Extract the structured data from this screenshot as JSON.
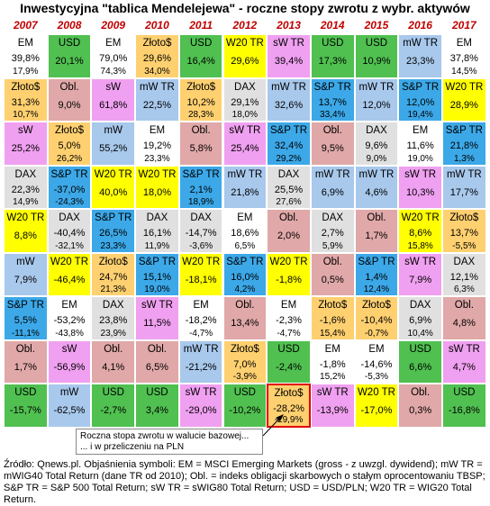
{
  "title": "Inwestycyjna \"tablica Mendelejewa\" - roczne stopy zwrotu z wybr. aktywów",
  "note": [
    "Roczna stopa zwrotu w walucie bazowej...",
    "... i w przeliczeniu na PLN"
  ],
  "source": "Źródło: Qnews.pl. Objaśnienia symboli: EM = MSCI Emerging Markets (gross - z uwzgl. dywidend); mW TR = mWIG40 Total Return (dane TR od 2010); Obl. = indeks obligacji skarbowych o stałym oprocentowaniu TBSP; S&P TR = S&P 500 Total Return; sW TR = sWIG80 Total Return; USD = USD/PLN; W20 TR = WIG20 Total Return.",
  "colors": {
    "EM": "#ffffff",
    "mW": "#a8c8ec",
    "Obl": "#e0a8a8",
    "sW": "#f0a0f0",
    "DAX": "#e0e0e0",
    "SP": "#3ca8e8",
    "W20": "#ffff00",
    "USD": "#50c050",
    "Zloto": "#ffd070"
  },
  "chart_data": {
    "type": "table",
    "years": [
      "2007",
      "2008",
      "2009",
      "2010",
      "2011",
      "2012",
      "2013",
      "2014",
      "2015",
      "2016",
      "2017"
    ],
    "columns": [
      [
        {
          "a": "EM",
          "label": "EM",
          "val": "39,8%",
          "sub": "17,9%"
        },
        {
          "a": "Zloto",
          "label": "Złoto$",
          "val": "31,3%",
          "sub": "10,7%"
        },
        {
          "a": "sW",
          "label": "sW",
          "val": "25,2%"
        },
        {
          "a": "DAX",
          "label": "DAX",
          "val": "22,3%",
          "sub": "14,9%"
        },
        {
          "a": "W20",
          "label": "W20 TR",
          "val": "8,8%"
        },
        {
          "a": "mW",
          "label": "mW",
          "val": "7,9%"
        },
        {
          "a": "SP",
          "label": "S&P TR",
          "val": "5,5%",
          "sub": "-11,1%"
        },
        {
          "a": "Obl",
          "label": "Obl.",
          "val": "1,7%"
        },
        {
          "a": "USD",
          "label": "USD",
          "val": "-15,7%"
        }
      ],
      [
        {
          "a": "USD",
          "label": "USD",
          "val": "20,1%"
        },
        {
          "a": "Obl",
          "label": "Obl.",
          "val": "9,0%"
        },
        {
          "a": "Zloto",
          "label": "Złoto$",
          "val": "5,0%",
          "sub": "26,2%"
        },
        {
          "a": "SP",
          "label": "S&P TR",
          "val": "-37,0%",
          "sub": "-24,3%"
        },
        {
          "a": "DAX",
          "label": "DAX",
          "val": "-40,4%",
          "sub": "-32,1%"
        },
        {
          "a": "W20",
          "label": "W20 TR",
          "val": "-46,4%"
        },
        {
          "a": "EM",
          "label": "EM",
          "val": "-53,2%",
          "sub": "-43,8%"
        },
        {
          "a": "sW",
          "label": "sW",
          "val": "-56,9%"
        },
        {
          "a": "mW",
          "label": "mW",
          "val": "-62,5%"
        }
      ],
      [
        {
          "a": "EM",
          "label": "EM",
          "val": "79,0%",
          "sub": "74,3%"
        },
        {
          "a": "sW",
          "label": "sW",
          "val": "61,8%"
        },
        {
          "a": "mW",
          "label": "mW",
          "val": "55,2%"
        },
        {
          "a": "W20",
          "label": "W20 TR",
          "val": "40,0%"
        },
        {
          "a": "SP",
          "label": "S&P TR",
          "val": "26,5%",
          "sub": "23,3%"
        },
        {
          "a": "Zloto",
          "label": "Złoto$",
          "val": "24,7%",
          "sub": "21,3%"
        },
        {
          "a": "DAX",
          "label": "DAX",
          "val": "23,8%",
          "sub": "23,9%"
        },
        {
          "a": "Obl",
          "label": "Obl.",
          "val": "4,1%"
        },
        {
          "a": "USD",
          "label": "USD",
          "val": "-2,7%"
        }
      ],
      [
        {
          "a": "Zloto",
          "label": "Złoto$",
          "val": "29,6%",
          "sub": "34,0%"
        },
        {
          "a": "mW",
          "label": "mW TR",
          "val": "22,5%"
        },
        {
          "a": "EM",
          "label": "EM",
          "val": "19,2%",
          "sub": "23,3%"
        },
        {
          "a": "W20",
          "label": "W20 TR",
          "val": "18,0%"
        },
        {
          "a": "DAX",
          "label": "DAX",
          "val": "16,1%",
          "sub": "11,9%"
        },
        {
          "a": "SP",
          "label": "S&P TR",
          "val": "15,1%",
          "sub": "19,0%"
        },
        {
          "a": "sW",
          "label": "sW TR",
          "val": "11,5%"
        },
        {
          "a": "Obl",
          "label": "Obl.",
          "val": "6,5%"
        },
        {
          "a": "USD",
          "label": "USD",
          "val": "3,4%"
        }
      ],
      [
        {
          "a": "USD",
          "label": "USD",
          "val": "16,4%"
        },
        {
          "a": "Zloto",
          "label": "Złoto$",
          "val": "10,2%",
          "sub": "28,3%"
        },
        {
          "a": "Obl",
          "label": "Obl.",
          "val": "5,8%"
        },
        {
          "a": "SP",
          "label": "S&P TR",
          "val": "2,1%",
          "sub": "18,9%"
        },
        {
          "a": "DAX",
          "label": "DAX",
          "val": "-14,7%",
          "sub": "-3,6%"
        },
        {
          "a": "W20",
          "label": "W20 TR",
          "val": "-18,1%"
        },
        {
          "a": "EM",
          "label": "EM",
          "val": "-18,2%",
          "sub": "-4,7%"
        },
        {
          "a": "mW",
          "label": "mW TR",
          "val": "-21,2%"
        },
        {
          "a": "sW",
          "label": "sW TR",
          "val": "-29,0%"
        }
      ],
      [
        {
          "a": "W20",
          "label": "W20 TR",
          "val": "29,6%"
        },
        {
          "a": "DAX",
          "label": "DAX",
          "val": "29,1%",
          "sub": "18,0%"
        },
        {
          "a": "sW",
          "label": "sW TR",
          "val": "25,4%"
        },
        {
          "a": "mW",
          "label": "mW TR",
          "val": "21,8%"
        },
        {
          "a": "EM",
          "label": "EM",
          "val": "18,6%",
          "sub": "6,5%"
        },
        {
          "a": "SP",
          "label": "S&P TR",
          "val": "16,0%",
          "sub": "4,2%"
        },
        {
          "a": "Obl",
          "label": "Obl.",
          "val": "13,4%"
        },
        {
          "a": "Zloto",
          "label": "Złoto$",
          "val": "7,0%",
          "sub": "-3,9%"
        },
        {
          "a": "USD",
          "label": "USD",
          "val": "-10,2%"
        }
      ],
      [
        {
          "a": "sW",
          "label": "sW TR",
          "val": "39,4%"
        },
        {
          "a": "mW",
          "label": "mW TR",
          "val": "32,6%"
        },
        {
          "a": "SP",
          "label": "S&P TR",
          "val": "32,4%",
          "sub": "29,2%"
        },
        {
          "a": "DAX",
          "label": "DAX",
          "val": "25,5%",
          "sub": "27,6%"
        },
        {
          "a": "Obl",
          "label": "Obl.",
          "val": "2,0%"
        },
        {
          "a": "W20",
          "label": "W20 TR",
          "val": "-1,8%"
        },
        {
          "a": "EM",
          "label": "EM",
          "val": "-2,3%",
          "sub": "-4,7%"
        },
        {
          "a": "USD",
          "label": "USD",
          "val": "-2,4%"
        },
        {
          "a": "Zloto",
          "label": "Złoto$",
          "val": "-28,2%",
          "sub": "-29,9%",
          "hl": true
        }
      ],
      [
        {
          "a": "USD",
          "label": "USD",
          "val": "17,3%"
        },
        {
          "a": "SP",
          "label": "S&P TR",
          "val": "13,7%",
          "sub": "33,4%"
        },
        {
          "a": "Obl",
          "label": "Obl.",
          "val": "9,5%"
        },
        {
          "a": "mW",
          "label": "mW TR",
          "val": "6,9%"
        },
        {
          "a": "DAX",
          "label": "DAX",
          "val": "2,7%",
          "sub": "5,9%"
        },
        {
          "a": "Obl",
          "label": "Obl.",
          "val": "0,5%"
        },
        {
          "a": "Zloto",
          "label": "Złoto$",
          "val": "-1,6%",
          "sub": "15,4%"
        },
        {
          "a": "EM",
          "label": "EM",
          "val": "-1,8%",
          "sub": "15,2%"
        },
        {
          "a": "sW",
          "label": "sW TR",
          "val": "-13,9%"
        }
      ],
      [
        {
          "a": "USD",
          "label": "USD",
          "val": "10,9%"
        },
        {
          "a": "mW",
          "label": "mW TR",
          "val": "12,0%"
        },
        {
          "a": "DAX",
          "label": "DAX",
          "val": "9,6%",
          "sub": "9,0%"
        },
        {
          "a": "mW",
          "label": "mW TR",
          "val": "4,6%"
        },
        {
          "a": "Obl",
          "label": "Obl.",
          "val": "1,7%"
        },
        {
          "a": "SP",
          "label": "S&P TR",
          "val": "1,4%",
          "sub": "12,4%"
        },
        {
          "a": "Zloto",
          "label": "Złoto$",
          "val": "-10,4%",
          "sub": "-0,7%"
        },
        {
          "a": "EM",
          "label": "EM",
          "val": "-14,6%",
          "sub": "-5,3%"
        },
        {
          "a": "W20",
          "label": "W20 TR",
          "val": "-17,0%"
        }
      ],
      [
        {
          "a": "mW",
          "label": "mW TR",
          "val": "23,3%"
        },
        {
          "a": "SP",
          "label": "S&P TR",
          "val": "12,0%",
          "sub": "19,4%"
        },
        {
          "a": "EM",
          "label": "EM",
          "val": "11,6%",
          "sub": "19,0%"
        },
        {
          "a": "sW",
          "label": "sW TR",
          "val": "10,3%"
        },
        {
          "a": "W20",
          "label": "W20 TR",
          "val": "8,6%",
          "sub": "15,8%"
        },
        {
          "a": "sW",
          "label": "sW TR",
          "val": "7,9%"
        },
        {
          "a": "DAX",
          "label": "DAX",
          "val": "6,9%",
          "sub": "10,4%"
        },
        {
          "a": "USD",
          "label": "USD",
          "val": "6,6%"
        },
        {
          "a": "Obl",
          "label": "Obl.",
          "val": "0,3%"
        }
      ],
      [
        {
          "a": "EM",
          "label": "EM",
          "val": "37,8%",
          "sub": "14,5%"
        },
        {
          "a": "W20",
          "label": "W20 TR",
          "val": "28,9%"
        },
        {
          "a": "SP",
          "label": "S&P TR",
          "val": "21,8%",
          "sub": "1,3%"
        },
        {
          "a": "mW",
          "label": "mW TR",
          "val": "17,7%"
        },
        {
          "a": "Zloto",
          "label": "Złoto$",
          "val": "13,7%",
          "sub": "-5,5%"
        },
        {
          "a": "DAX",
          "label": "DAX",
          "val": "12,1%",
          "sub": "6,3%"
        },
        {
          "a": "Obl",
          "label": "Obl.",
          "val": "4,8%"
        },
        {
          "a": "sW",
          "label": "sW TR",
          "val": "4,7%"
        },
        {
          "a": "USD",
          "label": "USD",
          "val": "-16,8%"
        }
      ]
    ]
  }
}
